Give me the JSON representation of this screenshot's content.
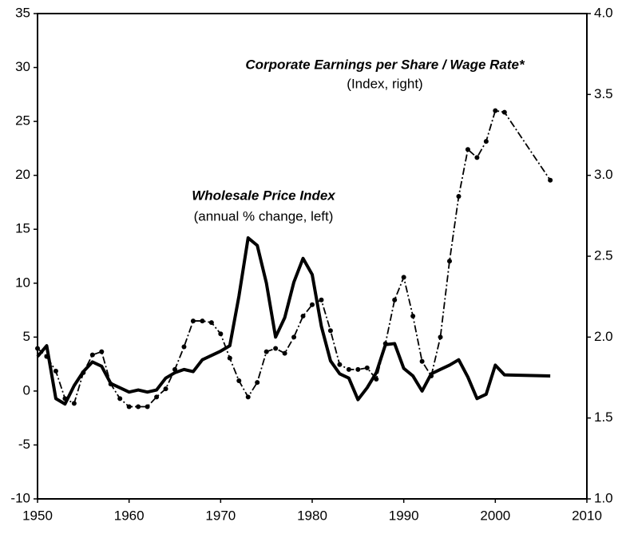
{
  "chart_data": {
    "type": "line",
    "x": [
      1950,
      1951,
      1952,
      1953,
      1954,
      1955,
      1956,
      1957,
      1958,
      1959,
      1960,
      1961,
      1962,
      1963,
      1964,
      1965,
      1966,
      1967,
      1968,
      1969,
      1970,
      1971,
      1972,
      1973,
      1974,
      1975,
      1976,
      1977,
      1978,
      1979,
      1980,
      1981,
      1982,
      1983,
      1984,
      1985,
      1986,
      1987,
      1988,
      1989,
      1990,
      1991,
      1992,
      1993,
      1994,
      1995,
      1996,
      1997,
      1998,
      1999,
      2000,
      2001,
      2006
    ],
    "series": [
      {
        "name": "Wholesale Price Index",
        "subtitle": "(annual % change, left)",
        "color": "#000000",
        "style": "solid",
        "axis": "y",
        "values": [
          3.2,
          4.2,
          -0.7,
          -1.2,
          0.5,
          1.8,
          2.7,
          2.3,
          0.7,
          0.3,
          -0.1,
          0.1,
          -0.1,
          0.1,
          1.2,
          1.7,
          2.0,
          1.8,
          2.9,
          3.3,
          3.7,
          4.2,
          8.8,
          14.2,
          13.5,
          10,
          5.0,
          6.8,
          10.1,
          12.3,
          10.8,
          6.0,
          2.8,
          1.6,
          1.2,
          -0.8,
          0.3,
          1.7,
          4.3,
          4.4,
          2.1,
          1.4,
          0.0,
          1.6,
          2.0,
          2.4,
          2.9,
          1.3,
          -0.7,
          -0.3,
          2.4,
          1.5,
          1.4
        ]
      },
      {
        "name": "Corporate Earnings per Share / Wage Rate*",
        "subtitle": "(Index, right)",
        "color": "#000000",
        "style": "dashdot",
        "axis": "y2",
        "values": [
          1.93,
          1.88,
          1.79,
          1.62,
          1.59,
          1.78,
          1.89,
          1.91,
          1.71,
          1.62,
          1.57,
          1.57,
          1.57,
          1.63,
          1.68,
          1.8,
          1.94,
          2.1,
          2.1,
          2.09,
          2.02,
          1.87,
          1.73,
          1.63,
          1.72,
          1.91,
          1.93,
          1.9,
          2.0,
          2.13,
          2.2,
          2.23,
          2.04,
          1.83,
          1.8,
          1.8,
          1.81,
          1.74,
          1.96,
          2.23,
          2.37,
          2.13,
          1.85,
          1.76,
          2.0,
          2.47,
          2.87,
          3.16,
          3.11,
          3.21,
          3.4,
          3.39,
          2.97
        ]
      }
    ],
    "xlim": [
      1950,
      2010
    ],
    "xticks": [
      1950,
      1960,
      1970,
      1980,
      1990,
      2000,
      2010
    ],
    "ylim": [
      -10,
      35
    ],
    "yticks": [
      -10,
      -5,
      0,
      5,
      10,
      15,
      20,
      25,
      30,
      35
    ],
    "y2lim": [
      1,
      4
    ],
    "y2ticks": [
      {
        "value": 1,
        "label": "1.0"
      },
      1.5,
      {
        "value": 2,
        "label": "2.0"
      },
      2.5,
      {
        "value": 3,
        "label": "3.0"
      },
      3.5,
      {
        "value": 4,
        "label": "4.0"
      }
    ],
    "grid": false
  }
}
